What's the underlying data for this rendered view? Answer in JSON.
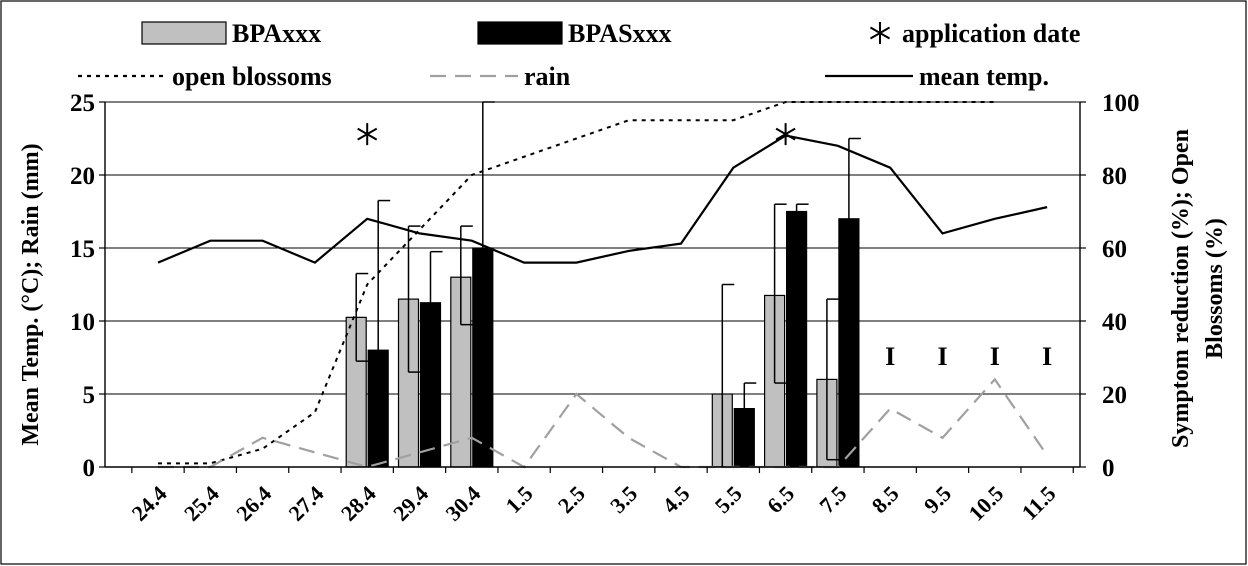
{
  "chart_data": {
    "type": "bar",
    "categories": [
      "24.4",
      "25.4",
      "26.4",
      "27.4",
      "28.4",
      "29.4",
      "30.4",
      "1.5",
      "2.5",
      "3.5",
      "4.5",
      "5.5",
      "6.5",
      "7.5",
      "8.5",
      "9.5",
      "10.5",
      "11.5"
    ],
    "xlabel": "",
    "ylabel": "Mean Temp. (°C); Rain (mm)",
    "ylabel_right_lines": [
      "Symptom reduction (%); Open",
      "Blossoms (%)"
    ],
    "ylim": [
      0,
      25
    ],
    "ylim_right": [
      0,
      100
    ],
    "y_ticks": [
      0,
      5,
      10,
      15,
      20,
      25
    ],
    "y_ticks_right": [
      0,
      20,
      40,
      60,
      80,
      100
    ],
    "grid": "horizontal",
    "legend_position": "top",
    "bar_series": [
      {
        "name": "BPAxxx",
        "color": "#c0c0c0",
        "values": [
          null,
          null,
          null,
          null,
          41,
          46,
          52,
          null,
          null,
          null,
          null,
          20,
          47,
          24,
          null,
          null,
          null,
          null
        ],
        "err_low": [
          null,
          null,
          null,
          null,
          12,
          20,
          13,
          null,
          null,
          null,
          null,
          20,
          24,
          22,
          null,
          null,
          null,
          null
        ],
        "err_high": [
          null,
          null,
          null,
          null,
          12,
          20,
          14,
          null,
          null,
          null,
          null,
          30,
          25,
          22,
          null,
          null,
          null,
          null
        ]
      },
      {
        "name": "BPASxxx",
        "color": "#000000",
        "values": [
          null,
          null,
          null,
          null,
          32,
          45,
          60,
          null,
          null,
          null,
          null,
          16,
          70,
          68,
          null,
          null,
          null,
          null
        ],
        "err_low": [
          null,
          null,
          null,
          null,
          0,
          0,
          0,
          null,
          null,
          null,
          null,
          0,
          0,
          0,
          null,
          null,
          null,
          null
        ],
        "err_high": [
          null,
          null,
          null,
          null,
          41,
          14,
          40,
          null,
          null,
          null,
          null,
          7,
          2,
          22,
          null,
          null,
          null,
          null
        ]
      }
    ],
    "line_series": [
      {
        "name": "open blossoms",
        "axis": "right",
        "style": "dotted",
        "color": "#000000",
        "values": [
          1,
          1,
          5,
          15,
          50,
          65,
          80,
          85,
          90,
          95,
          95,
          95,
          100,
          100,
          100,
          100,
          100,
          null
        ]
      },
      {
        "name": "rain",
        "axis": "left",
        "style": "dashed",
        "color": "#a0a0a0",
        "values": [
          0,
          0,
          2,
          1,
          0,
          1,
          2,
          0,
          5,
          2,
          0,
          0,
          0,
          0,
          4,
          2,
          6,
          0.8
        ]
      },
      {
        "name": "mean temp.",
        "axis": "left",
        "style": "solid",
        "color": "#000000",
        "values": [
          14,
          15.5,
          15.5,
          14,
          17,
          16,
          15.5,
          14,
          14,
          14.8,
          15.3,
          20.5,
          22.7,
          22,
          20.5,
          16,
          17,
          17.8
        ]
      }
    ],
    "application_dates": [
      {
        "category": "28.4",
        "value": 22.8
      },
      {
        "category": "6.5",
        "value": 22.8
      }
    ],
    "annotations": [
      {
        "category": "8.5",
        "text": "I",
        "value": 7
      },
      {
        "category": "9.5",
        "text": "I",
        "value": 7
      },
      {
        "category": "10.5",
        "text": "I",
        "value": 7
      },
      {
        "category": "11.5",
        "text": "I",
        "value": 7
      }
    ],
    "legend": [
      {
        "label": "BPAxxx",
        "kind": "bar",
        "color": "#c0c0c0"
      },
      {
        "label": "BPASxxx",
        "kind": "bar",
        "color": "#000000"
      },
      {
        "label": "application date",
        "kind": "star"
      },
      {
        "label": "open blossoms",
        "kind": "dotted"
      },
      {
        "label": "rain",
        "kind": "dashed"
      },
      {
        "label": "mean temp.",
        "kind": "solid"
      }
    ]
  }
}
